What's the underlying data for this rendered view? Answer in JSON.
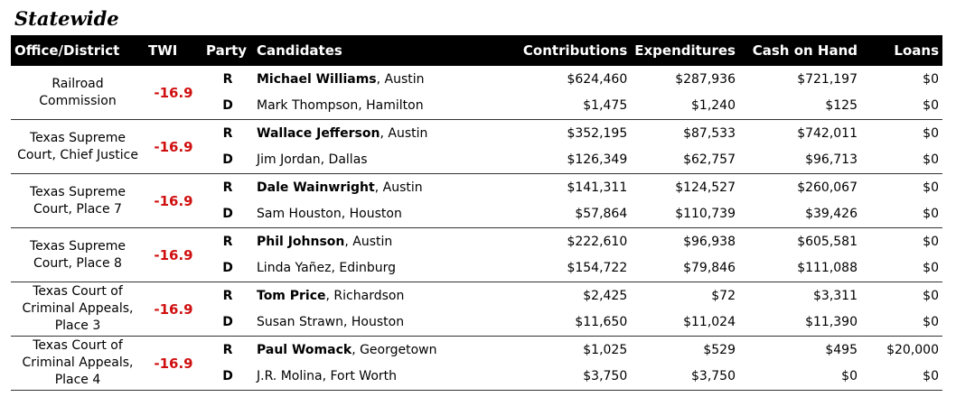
{
  "title": "Statewide",
  "colors": {
    "twi": "#d01010",
    "header_bg": "#000000"
  },
  "columns": [
    "Office/District",
    "TWI",
    "Party",
    "Candidates",
    "Contributions",
    "Expenditures",
    "Cash on Hand",
    "Loans"
  ],
  "races": [
    {
      "office": "Railroad Commission",
      "twi": "-16.9",
      "candidates": [
        {
          "party": "R",
          "name": "Michael Williams",
          "city": ", Austin",
          "contributions": "$624,460",
          "expenditures": "$287,936",
          "cash": "$721,197",
          "loans": "$0"
        },
        {
          "party": "D",
          "name": "Mark Thompson, Hamilton",
          "city": "",
          "contributions": "$1,475",
          "expenditures": "$1,240",
          "cash": "$125",
          "loans": "$0"
        }
      ]
    },
    {
      "office": "Texas Supreme Court, Chief Justice",
      "twi": "-16.9",
      "candidates": [
        {
          "party": "R",
          "name": "Wallace Jefferson",
          "city": ", Austin",
          "contributions": "$352,195",
          "expenditures": "$87,533",
          "cash": "$742,011",
          "loans": "$0"
        },
        {
          "party": "D",
          "name": "Jim Jordan, Dallas",
          "city": "",
          "contributions": "$126,349",
          "expenditures": "$62,757",
          "cash": "$96,713",
          "loans": "$0"
        }
      ]
    },
    {
      "office": "Texas Supreme Court, Place 7",
      "twi": "-16.9",
      "candidates": [
        {
          "party": "R",
          "name": "Dale Wainwright",
          "city": ", Austin",
          "contributions": "$141,311",
          "expenditures": "$124,527",
          "cash": "$260,067",
          "loans": "$0"
        },
        {
          "party": "D",
          "name": "Sam Houston, Houston",
          "city": "",
          "contributions": "$57,864",
          "expenditures": "$110,739",
          "cash": "$39,426",
          "loans": "$0"
        }
      ]
    },
    {
      "office": "Texas Supreme Court, Place 8",
      "twi": "-16.9",
      "candidates": [
        {
          "party": "R",
          "name": "Phil Johnson",
          "city": ", Austin",
          "contributions": "$222,610",
          "expenditures": "$96,938",
          "cash": "$605,581",
          "loans": "$0"
        },
        {
          "party": "D",
          "name": "Linda Yañez, Edinburg",
          "city": "",
          "contributions": "$154,722",
          "expenditures": "$79,846",
          "cash": "$111,088",
          "loans": "$0"
        }
      ]
    },
    {
      "office": "Texas Court of Criminal Appeals, Place 3",
      "twi": "-16.9",
      "candidates": [
        {
          "party": "R",
          "name": "Tom Price",
          "city": ", Richardson",
          "contributions": "$2,425",
          "expenditures": "$72",
          "cash": "$3,311",
          "loans": "$0"
        },
        {
          "party": "D",
          "name": "Susan Strawn, Houston",
          "city": "",
          "contributions": "$11,650",
          "expenditures": "$11,024",
          "cash": "$11,390",
          "loans": "$0"
        }
      ]
    },
    {
      "office": "Texas Court of Criminal Appeals, Place 4",
      "twi": "-16.9",
      "candidates": [
        {
          "party": "R",
          "name": "Paul Womack",
          "city": ", Georgetown",
          "contributions": "$1,025",
          "expenditures": "$529",
          "cash": "$495",
          "loans": "$20,000"
        },
        {
          "party": "D",
          "name": "J.R. Molina, Fort Worth",
          "city": "",
          "contributions": "$3,750",
          "expenditures": "$3,750",
          "cash": "$0",
          "loans": "$0"
        }
      ]
    }
  ]
}
